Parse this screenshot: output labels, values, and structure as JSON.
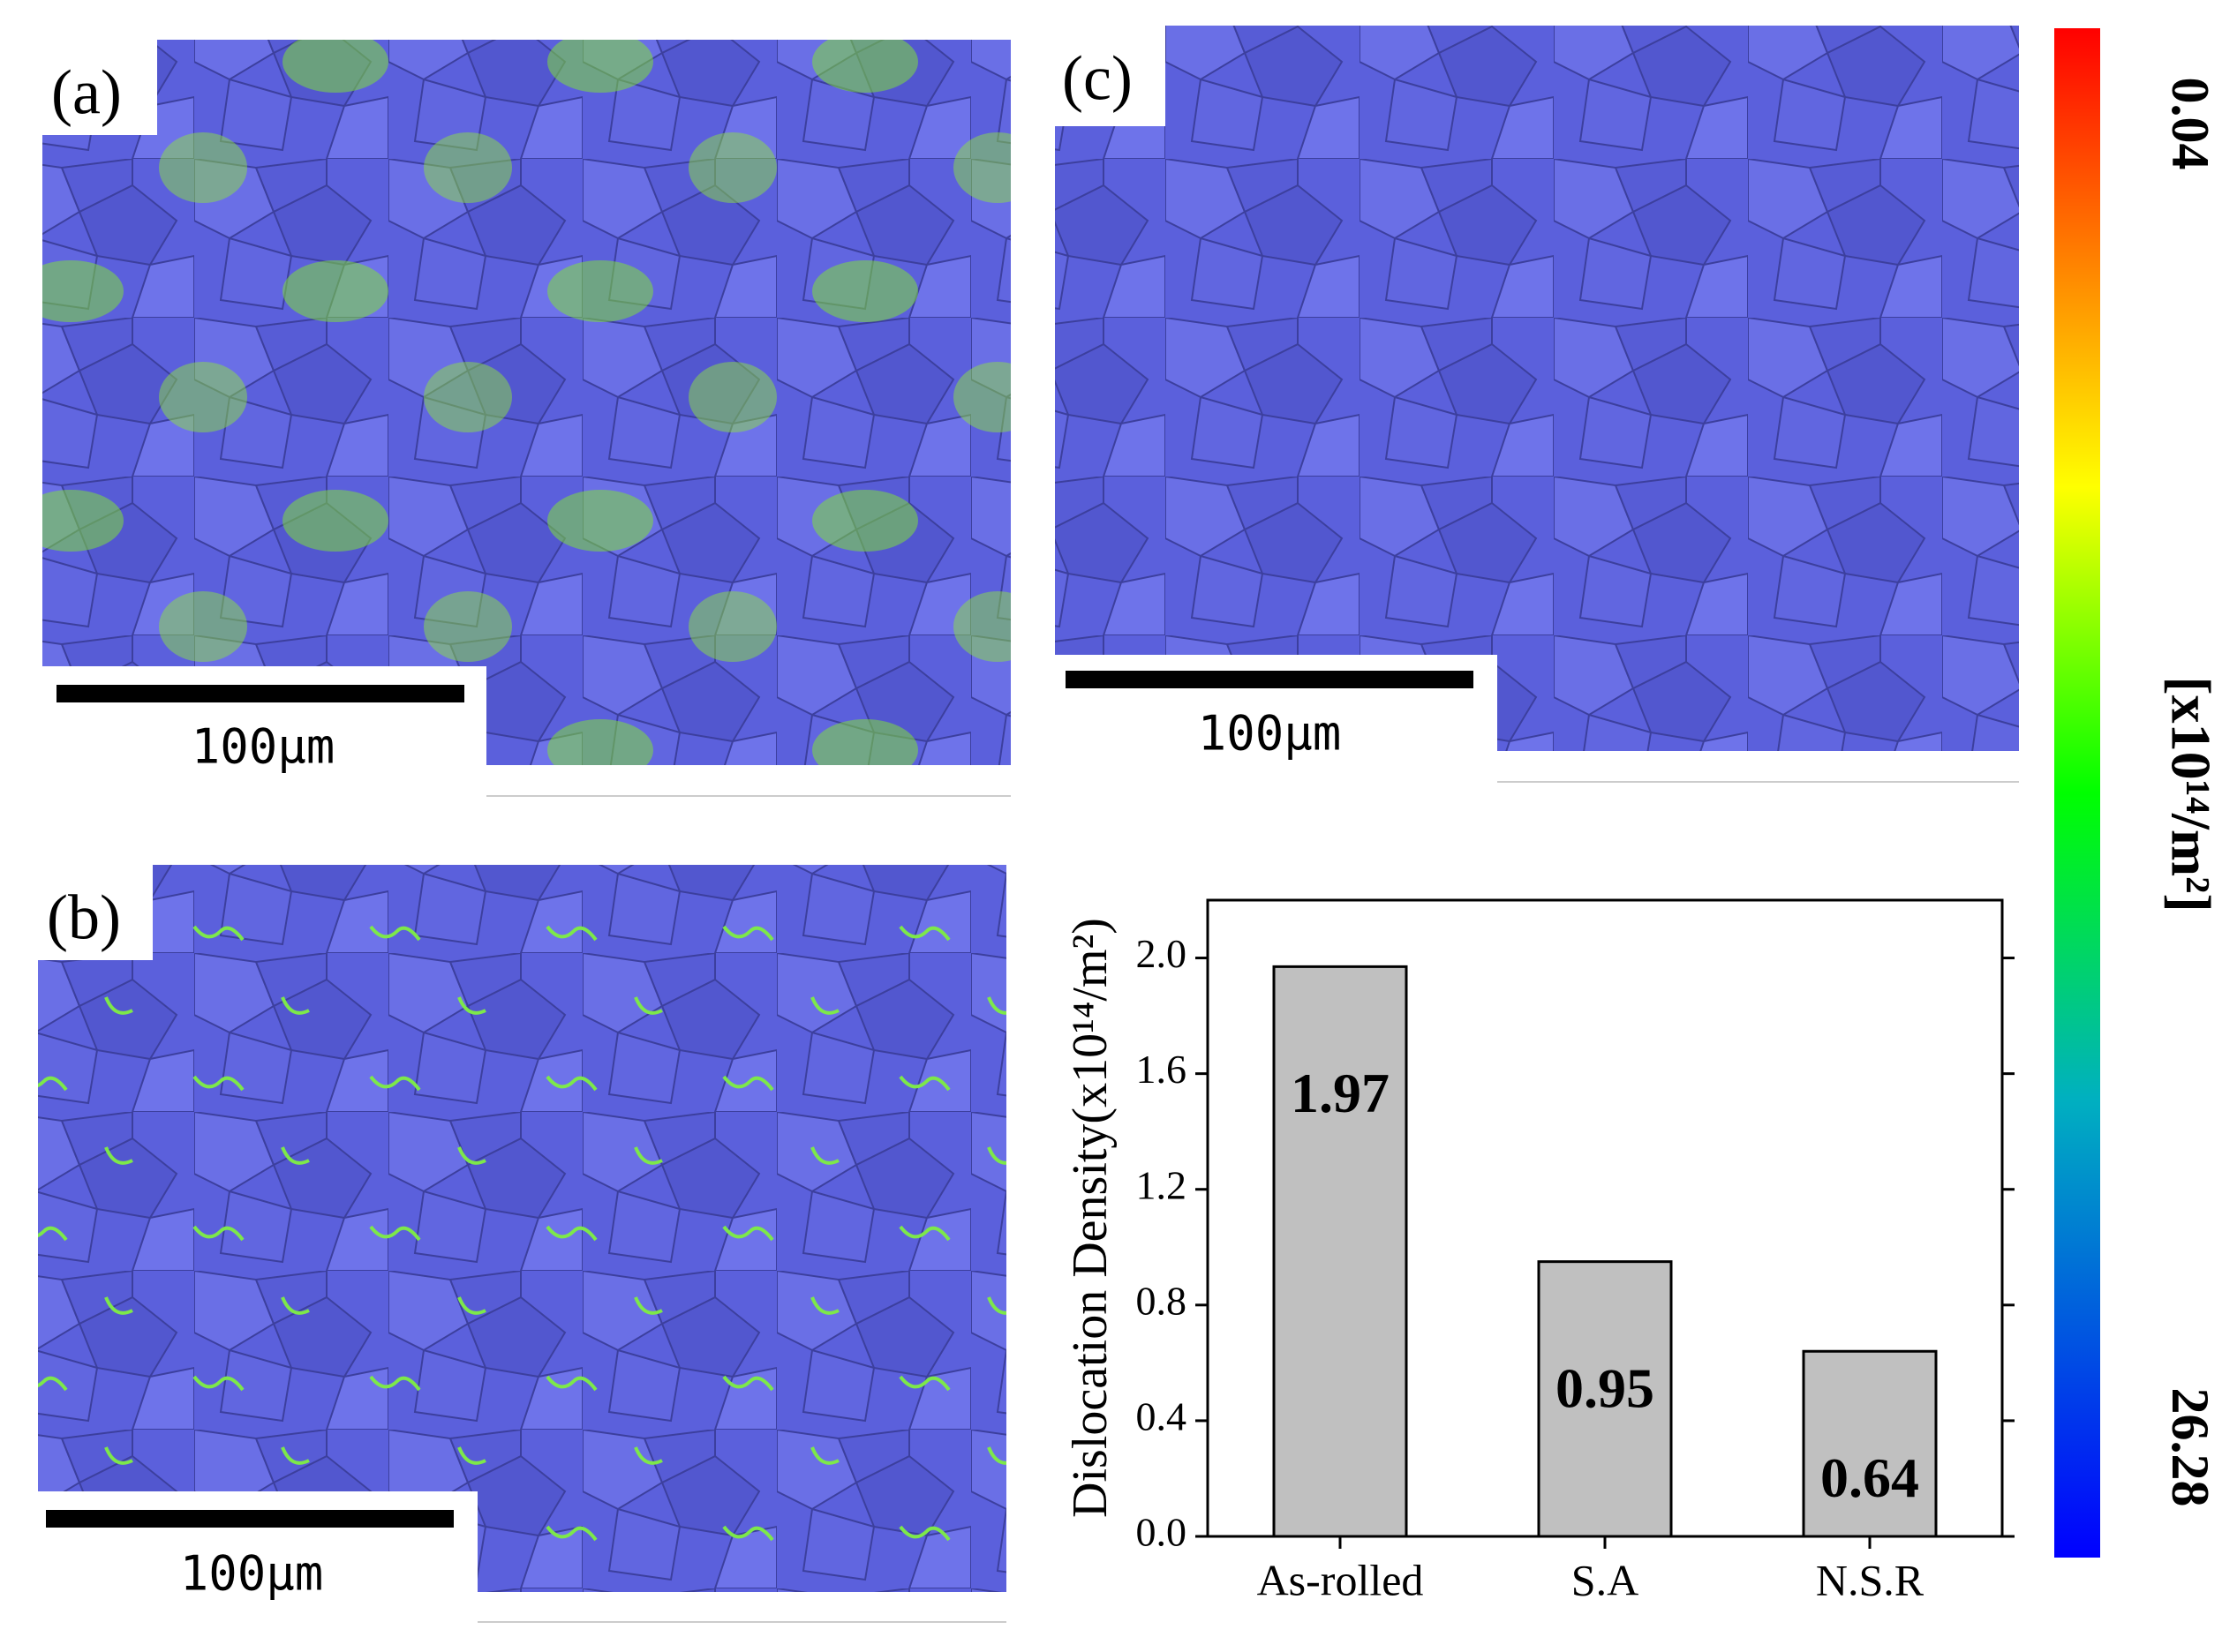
{
  "panels": [
    {
      "label": "(a)",
      "scale_bar": "100μm"
    },
    {
      "label": "(b)",
      "scale_bar": "100μm"
    },
    {
      "label": "(c)",
      "scale_bar": "100μm"
    }
  ],
  "colorbar": {
    "top_label": "0.04",
    "bottom_label": "26.28",
    "unit": "[x10¹⁴/m²]"
  },
  "chart_data": {
    "type": "bar",
    "y_label": "Dislocation Density(x10¹⁴/m²)",
    "categories": [
      "As-rolled",
      "S.A",
      "N.S.R"
    ],
    "values": [
      1.97,
      0.95,
      0.64
    ],
    "color": "#c0c0c0",
    "ylim": [
      0,
      2.2
    ],
    "yticks": [
      {
        "value": 0,
        "label": "0.0"
      },
      0.4,
      0.8,
      1.2,
      1.6,
      {
        "value": 2,
        "label": "2.0"
      }
    ]
  }
}
